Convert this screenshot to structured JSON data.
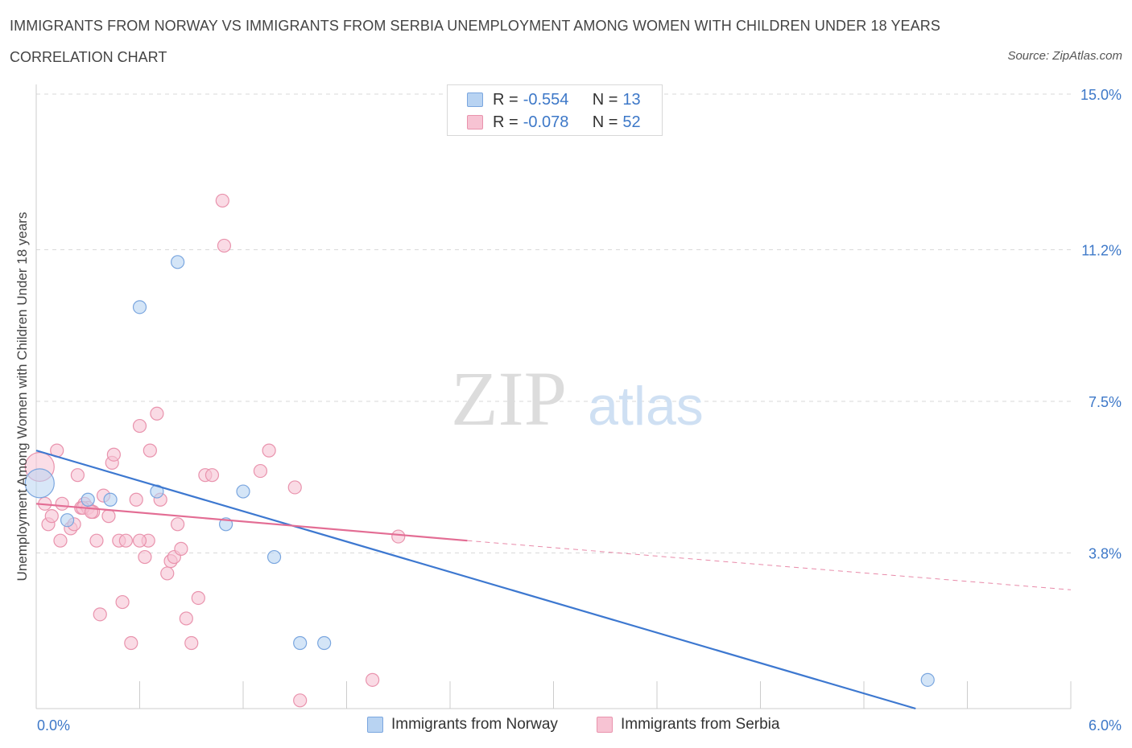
{
  "header": {
    "title": "IMMIGRANTS FROM NORWAY VS IMMIGRANTS FROM SERBIA UNEMPLOYMENT AMONG WOMEN WITH CHILDREN UNDER 18 YEARS",
    "subtitle": "CORRELATION CHART",
    "source": "Source: ZipAtlas.com"
  },
  "watermark": {
    "zip": "ZIP",
    "atlas": "atlas"
  },
  "legend": {
    "rows": [
      {
        "r_label": "R =",
        "r_value": "-0.554",
        "n_label": "N =",
        "n_value": "13"
      },
      {
        "r_label": "R =",
        "r_value": "-0.078",
        "n_label": "N =",
        "n_value": "52"
      }
    ]
  },
  "colors": {
    "norway_fill": "#b8d3f2",
    "norway_stroke": "#7aa6df",
    "norway_line": "#3d78d0",
    "serbia_fill": "#f7c3d3",
    "serbia_stroke": "#e993ad",
    "serbia_line": "#e36d94",
    "grid": "#d9d9d9",
    "tick_label": "#3d78c8"
  },
  "chart_data": {
    "type": "scatter",
    "title": "IMMIGRANTS FROM NORWAY VS IMMIGRANTS FROM SERBIA UNEMPLOYMENT AMONG WOMEN WITH CHILDREN UNDER 18 YEARS",
    "xlabel": "",
    "ylabel": "Unemployment Among Women with Children Under 18 years",
    "xlim": [
      0,
      6
    ],
    "ylim": [
      0,
      15
    ],
    "x_tick_labels": [
      "0.0%",
      "6.0%"
    ],
    "y_ticks": [
      3.8,
      7.5,
      11.2,
      15.0
    ],
    "y_tick_labels": [
      "3.8%",
      "7.5%",
      "11.2%",
      "15.0%"
    ],
    "grid": true,
    "legend_position": "bottom",
    "series": [
      {
        "name": "Immigrants from Norway",
        "r": -0.554,
        "n": 13,
        "trend": {
          "x": [
            0.0,
            5.1
          ],
          "y": [
            6.3,
            0.0
          ]
        },
        "points": [
          {
            "x": 0.02,
            "y": 5.5,
            "big": true
          },
          {
            "x": 0.18,
            "y": 4.6
          },
          {
            "x": 0.3,
            "y": 5.1
          },
          {
            "x": 0.43,
            "y": 5.1
          },
          {
            "x": 0.6,
            "y": 9.8
          },
          {
            "x": 0.7,
            "y": 5.3
          },
          {
            "x": 0.82,
            "y": 10.9
          },
          {
            "x": 1.1,
            "y": 4.5
          },
          {
            "x": 1.2,
            "y": 5.3
          },
          {
            "x": 1.38,
            "y": 3.7
          },
          {
            "x": 1.53,
            "y": 1.6
          },
          {
            "x": 1.67,
            "y": 1.6
          },
          {
            "x": 5.17,
            "y": 0.7
          }
        ]
      },
      {
        "name": "Immigrants from Serbia",
        "r": -0.078,
        "n": 52,
        "trend": {
          "x": [
            0.0,
            2.5
          ],
          "y": [
            5.0,
            4.1
          ]
        },
        "trend_extrapolated": {
          "x": [
            2.5,
            6.0
          ],
          "y": [
            4.1,
            2.9
          ]
        },
        "points": [
          {
            "x": 0.02,
            "y": 5.9,
            "big": true
          },
          {
            "x": 0.05,
            "y": 5.0
          },
          {
            "x": 0.07,
            "y": 4.5
          },
          {
            "x": 0.09,
            "y": 4.7
          },
          {
            "x": 0.12,
            "y": 6.3
          },
          {
            "x": 0.14,
            "y": 4.1
          },
          {
            "x": 0.15,
            "y": 5.0
          },
          {
            "x": 0.2,
            "y": 4.4
          },
          {
            "x": 0.22,
            "y": 4.5
          },
          {
            "x": 0.24,
            "y": 5.7
          },
          {
            "x": 0.26,
            "y": 4.9
          },
          {
            "x": 0.28,
            "y": 5.0
          },
          {
            "x": 0.3,
            "y": 4.9
          },
          {
            "x": 0.33,
            "y": 4.8
          },
          {
            "x": 0.35,
            "y": 4.1
          },
          {
            "x": 0.37,
            "y": 2.3
          },
          {
            "x": 0.39,
            "y": 5.2
          },
          {
            "x": 0.42,
            "y": 4.7
          },
          {
            "x": 0.44,
            "y": 6.0
          },
          {
            "x": 0.48,
            "y": 4.1
          },
          {
            "x": 0.5,
            "y": 2.6
          },
          {
            "x": 0.52,
            "y": 4.1
          },
          {
            "x": 0.58,
            "y": 5.1
          },
          {
            "x": 0.6,
            "y": 6.9
          },
          {
            "x": 0.63,
            "y": 3.7
          },
          {
            "x": 0.65,
            "y": 4.1
          },
          {
            "x": 0.66,
            "y": 6.3
          },
          {
            "x": 0.7,
            "y": 7.2
          },
          {
            "x": 0.72,
            "y": 5.1
          },
          {
            "x": 0.76,
            "y": 3.3
          },
          {
            "x": 0.78,
            "y": 3.6
          },
          {
            "x": 0.8,
            "y": 3.7
          },
          {
            "x": 0.82,
            "y": 4.5
          },
          {
            "x": 0.84,
            "y": 3.9
          },
          {
            "x": 0.87,
            "y": 2.2
          },
          {
            "x": 0.9,
            "y": 1.6
          },
          {
            "x": 0.94,
            "y": 2.7
          },
          {
            "x": 0.98,
            "y": 5.7
          },
          {
            "x": 1.02,
            "y": 5.7
          },
          {
            "x": 1.08,
            "y": 12.4
          },
          {
            "x": 1.09,
            "y": 11.3
          },
          {
            "x": 1.3,
            "y": 5.8
          },
          {
            "x": 1.35,
            "y": 6.3
          },
          {
            "x": 1.5,
            "y": 5.4
          },
          {
            "x": 1.53,
            "y": 0.2
          },
          {
            "x": 1.95,
            "y": 0.7
          },
          {
            "x": 2.1,
            "y": 4.2
          },
          {
            "x": 0.55,
            "y": 1.6
          },
          {
            "x": 0.45,
            "y": 6.2
          },
          {
            "x": 0.27,
            "y": 4.9
          },
          {
            "x": 0.32,
            "y": 4.8
          },
          {
            "x": 0.6,
            "y": 4.1
          }
        ]
      }
    ]
  }
}
